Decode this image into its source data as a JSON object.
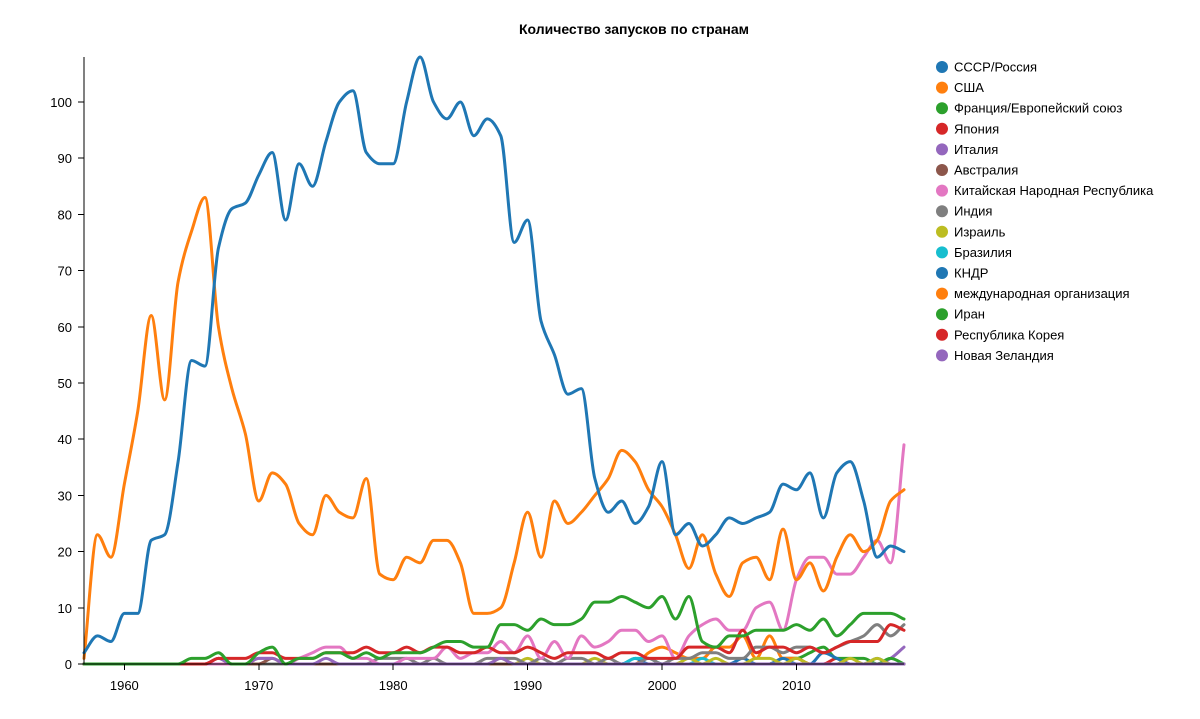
{
  "chart_data": {
    "type": "line",
    "title": "Количество запусков по странам",
    "xlabel": "",
    "ylabel": "",
    "xlim": [
      1957,
      2018
    ],
    "ylim": [
      0,
      108
    ],
    "x_ticks": [
      1960,
      1970,
      1980,
      1990,
      2000,
      2010
    ],
    "y_ticks": [
      0,
      10,
      20,
      30,
      40,
      50,
      60,
      70,
      80,
      90,
      100
    ],
    "legend_position": "right",
    "years": [
      1957,
      1958,
      1959,
      1960,
      1961,
      1962,
      1963,
      1964,
      1965,
      1966,
      1967,
      1968,
      1969,
      1970,
      1971,
      1972,
      1973,
      1974,
      1975,
      1976,
      1977,
      1978,
      1979,
      1980,
      1981,
      1982,
      1983,
      1984,
      1985,
      1986,
      1987,
      1988,
      1989,
      1990,
      1991,
      1992,
      1993,
      1994,
      1995,
      1996,
      1997,
      1998,
      1999,
      2000,
      2001,
      2002,
      2003,
      2004,
      2005,
      2006,
      2007,
      2008,
      2009,
      2010,
      2011,
      2012,
      2013,
      2014,
      2015,
      2016,
      2017,
      2018
    ],
    "series": [
      {
        "name": "СССР/Россия",
        "color": "#1f77b4",
        "values": [
          2,
          5,
          4,
          9,
          9,
          22,
          23,
          36,
          54,
          53,
          74,
          81,
          82,
          87,
          91,
          79,
          89,
          85,
          93,
          100,
          102,
          91,
          89,
          89,
          100,
          108,
          100,
          97,
          100,
          94,
          97,
          94,
          75,
          79,
          61,
          55,
          48,
          49,
          33,
          27,
          29,
          25,
          28,
          36,
          23,
          25,
          21,
          23,
          26,
          25,
          26,
          27,
          32,
          31,
          34,
          26,
          34,
          36,
          29,
          19,
          21,
          20
        ]
      },
      {
        "name": "США",
        "color": "#ff7f0e",
        "values": [
          1,
          23,
          19,
          32,
          45,
          62,
          47,
          68,
          77,
          83,
          60,
          49,
          41,
          29,
          34,
          32,
          25,
          23,
          30,
          27,
          26,
          33,
          16,
          15,
          19,
          18,
          22,
          22,
          18,
          9,
          9,
          10,
          18,
          27,
          19,
          29,
          25,
          27,
          30,
          33,
          38,
          36,
          31,
          28,
          23,
          17,
          23,
          16,
          12,
          18,
          19,
          15,
          24,
          15,
          18,
          13,
          19,
          23,
          20,
          22,
          29,
          31
        ]
      },
      {
        "name": "Франция/Европейский союз",
        "color": "#2ca02c",
        "values": [
          0,
          0,
          0,
          0,
          0,
          0,
          0,
          0,
          1,
          1,
          2,
          0,
          0,
          2,
          3,
          0,
          1,
          1,
          2,
          2,
          1,
          2,
          1,
          2,
          2,
          2,
          3,
          4,
          4,
          3,
          3,
          7,
          7,
          6,
          8,
          7,
          7,
          8,
          11,
          11,
          12,
          11,
          10,
          12,
          8,
          12,
          4,
          3,
          5,
          5,
          6,
          6,
          6,
          7,
          6,
          8,
          5,
          7,
          9,
          9,
          9,
          8
        ]
      },
      {
        "name": "Япония",
        "color": "#d62728",
        "values": [
          0,
          0,
          0,
          0,
          0,
          0,
          0,
          0,
          0,
          0,
          1,
          1,
          1,
          2,
          2,
          1,
          1,
          1,
          2,
          2,
          2,
          3,
          2,
          2,
          3,
          2,
          3,
          3,
          2,
          2,
          3,
          2,
          2,
          3,
          2,
          1,
          2,
          2,
          2,
          1,
          2,
          2,
          1,
          1,
          1,
          3,
          3,
          3,
          2,
          6,
          2,
          3,
          3,
          2,
          3,
          2,
          3,
          4,
          4,
          4,
          7,
          6
        ]
      },
      {
        "name": "Италия",
        "color": "#9467bd",
        "values": [
          0,
          0,
          0,
          0,
          0,
          0,
          0,
          0,
          0,
          0,
          1,
          0,
          0,
          1,
          1,
          0,
          0,
          0,
          1,
          0,
          0,
          0,
          0,
          0,
          0,
          0,
          0,
          0,
          0,
          0,
          0,
          1,
          0,
          0,
          0,
          0,
          0,
          0,
          0,
          0,
          0,
          0,
          0,
          0,
          0,
          0,
          0,
          0,
          0,
          0,
          0,
          0,
          0,
          0,
          0,
          0,
          0,
          0,
          0,
          0,
          0,
          0
        ]
      },
      {
        "name": "Австралия",
        "color": "#8c564b",
        "values": [
          0,
          0,
          0,
          0,
          0,
          0,
          0,
          0,
          0,
          0,
          1,
          0,
          0,
          0,
          1,
          0,
          0,
          0,
          0,
          0,
          0,
          0,
          0,
          0,
          0,
          0,
          0,
          0,
          0,
          0,
          0,
          0,
          0,
          0,
          0,
          0,
          0,
          0,
          0,
          0,
          0,
          0,
          0,
          0,
          0,
          0,
          0,
          0,
          0,
          0,
          0,
          0,
          0,
          0,
          0,
          0,
          0,
          0,
          0,
          0,
          0,
          0
        ]
      },
      {
        "name": "Китайская Народная Республика",
        "color": "#e377c2",
        "values": [
          0,
          0,
          0,
          0,
          0,
          0,
          0,
          0,
          0,
          0,
          0,
          0,
          0,
          1,
          1,
          0,
          1,
          2,
          3,
          3,
          1,
          1,
          0,
          0,
          1,
          1,
          1,
          3,
          1,
          2,
          2,
          4,
          2,
          5,
          1,
          4,
          1,
          5,
          3,
          4,
          6,
          6,
          4,
          5,
          1,
          5,
          7,
          8,
          6,
          6,
          10,
          11,
          6,
          15,
          19,
          19,
          16,
          16,
          19,
          22,
          18,
          39
        ]
      },
      {
        "name": "Индия",
        "color": "#7f7f7f",
        "values": [
          0,
          0,
          0,
          0,
          0,
          0,
          0,
          0,
          0,
          0,
          0,
          0,
          0,
          0,
          0,
          0,
          0,
          0,
          0,
          0,
          0,
          0,
          1,
          1,
          1,
          0,
          1,
          0,
          0,
          0,
          1,
          1,
          1,
          0,
          1,
          0,
          1,
          1,
          0,
          1,
          0,
          0,
          1,
          0,
          1,
          1,
          2,
          2,
          1,
          1,
          3,
          3,
          2,
          3,
          3,
          2,
          3,
          4,
          5,
          7,
          5,
          7
        ]
      },
      {
        "name": "Израиль",
        "color": "#bcbd22",
        "values": [
          0,
          0,
          0,
          0,
          0,
          0,
          0,
          0,
          0,
          0,
          0,
          0,
          0,
          0,
          0,
          0,
          0,
          0,
          0,
          0,
          0,
          0,
          0,
          0,
          0,
          0,
          0,
          0,
          0,
          0,
          0,
          1,
          0,
          1,
          0,
          0,
          0,
          0,
          1,
          0,
          0,
          0,
          0,
          0,
          0,
          1,
          0,
          1,
          0,
          0,
          1,
          1,
          0,
          1,
          0,
          0,
          0,
          1,
          0,
          1,
          0,
          0
        ]
      },
      {
        "name": "Бразилия",
        "color": "#17becf",
        "values": [
          0,
          0,
          0,
          0,
          0,
          0,
          0,
          0,
          0,
          0,
          0,
          0,
          0,
          0,
          0,
          0,
          0,
          0,
          0,
          0,
          0,
          0,
          0,
          0,
          0,
          0,
          0,
          0,
          0,
          0,
          0,
          0,
          0,
          0,
          0,
          0,
          0,
          0,
          0,
          0,
          0,
          1,
          1,
          0,
          0,
          0,
          1,
          0,
          0,
          0,
          0,
          0,
          0,
          0,
          0,
          0,
          0,
          0,
          0,
          0,
          0,
          0
        ]
      },
      {
        "name": "КНДР",
        "color": "#1f77b4",
        "values": [
          0,
          0,
          0,
          0,
          0,
          0,
          0,
          0,
          0,
          0,
          0,
          0,
          0,
          0,
          0,
          0,
          0,
          0,
          0,
          0,
          0,
          0,
          0,
          0,
          0,
          0,
          0,
          0,
          0,
          0,
          0,
          0,
          0,
          0,
          0,
          0,
          0,
          0,
          0,
          0,
          0,
          1,
          0,
          0,
          0,
          0,
          0,
          0,
          0,
          1,
          0,
          0,
          1,
          0,
          0,
          2,
          1,
          0,
          0,
          1,
          0,
          0
        ]
      },
      {
        "name": "международная организация",
        "color": "#ff7f0e",
        "values": [
          0,
          0,
          0,
          0,
          0,
          0,
          0,
          0,
          0,
          0,
          0,
          0,
          0,
          0,
          0,
          0,
          0,
          0,
          0,
          0,
          0,
          0,
          0,
          0,
          0,
          0,
          0,
          0,
          0,
          0,
          0,
          0,
          0,
          0,
          0,
          0,
          0,
          0,
          0,
          0,
          0,
          0,
          2,
          3,
          2,
          1,
          1,
          3,
          3,
          5,
          1,
          5,
          1,
          1,
          0,
          0,
          0,
          0,
          0,
          0,
          0,
          0
        ]
      },
      {
        "name": "Иран",
        "color": "#2ca02c",
        "values": [
          0,
          0,
          0,
          0,
          0,
          0,
          0,
          0,
          0,
          0,
          0,
          0,
          0,
          0,
          0,
          0,
          0,
          0,
          0,
          0,
          0,
          0,
          0,
          0,
          0,
          0,
          0,
          0,
          0,
          0,
          0,
          0,
          0,
          0,
          0,
          0,
          0,
          0,
          0,
          0,
          0,
          0,
          0,
          0,
          0,
          0,
          0,
          0,
          0,
          0,
          0,
          0,
          1,
          1,
          2,
          3,
          1,
          1,
          1,
          0,
          1,
          0
        ]
      },
      {
        "name": "Республика Корея",
        "color": "#d62728",
        "values": [
          0,
          0,
          0,
          0,
          0,
          0,
          0,
          0,
          0,
          0,
          0,
          0,
          0,
          0,
          0,
          0,
          0,
          0,
          0,
          0,
          0,
          0,
          0,
          0,
          0,
          0,
          0,
          0,
          0,
          0,
          0,
          0,
          0,
          0,
          0,
          0,
          0,
          0,
          0,
          0,
          0,
          0,
          0,
          0,
          0,
          0,
          0,
          0,
          0,
          0,
          0,
          0,
          1,
          1,
          0,
          0,
          1,
          0,
          0,
          0,
          0,
          0
        ]
      },
      {
        "name": "Новая Зеландия",
        "color": "#9467bd",
        "values": [
          0,
          0,
          0,
          0,
          0,
          0,
          0,
          0,
          0,
          0,
          0,
          0,
          0,
          0,
          0,
          0,
          0,
          0,
          0,
          0,
          0,
          0,
          0,
          0,
          0,
          0,
          0,
          0,
          0,
          0,
          0,
          0,
          0,
          0,
          0,
          0,
          0,
          0,
          0,
          0,
          0,
          0,
          0,
          0,
          0,
          0,
          0,
          0,
          0,
          0,
          0,
          0,
          0,
          0,
          0,
          0,
          0,
          0,
          0,
          0,
          1,
          3
        ]
      }
    ]
  }
}
